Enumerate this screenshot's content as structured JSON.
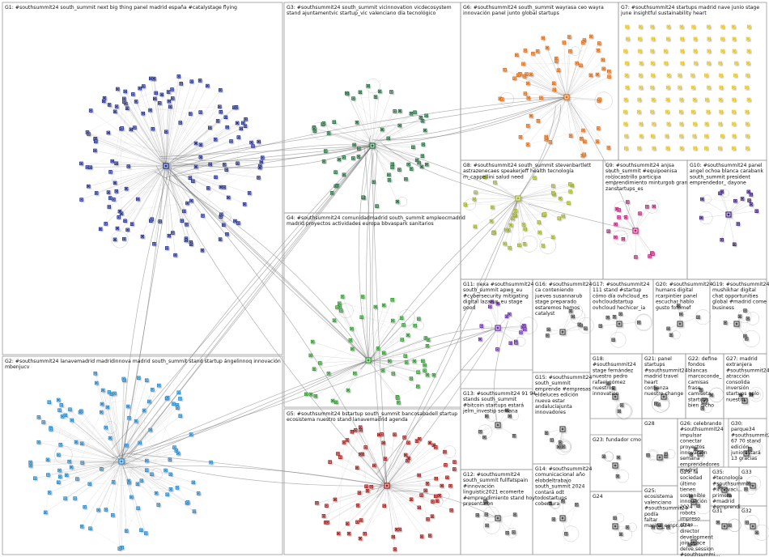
{
  "title": "",
  "colors": {
    "background": "#ffffff",
    "edge": "#8a8a8a",
    "group_border": "#9a9a9a",
    "G1": "#1a2a8a",
    "G2": "#1f86c8",
    "G3": "#1e6b3a",
    "G4": "#2a9a2a",
    "G5": "#a01818",
    "G6": "#d96a10",
    "G7": "#e6c21a",
    "G8": "#a0b020",
    "G9": "#c0187a",
    "G10": "#3a1a7a",
    "G11": "#6a2aa8",
    "small": "#4a4a4a"
  },
  "groups": [
    {
      "id": "G1",
      "label": "G1: #southsummit24 south_summit next big thing panel madrid españa #catalystage flying"
    },
    {
      "id": "G2",
      "label": "G2: #southsummit24 lanavemadrid madridinnova madrid south_summit stand startup ángelinnoq innovación mbenjucv"
    },
    {
      "id": "G3",
      "label": "G3: #southsummit24 south_summit vicinnovation vicdecosystem stand ajuntamentvic startup_vic valenciano día tecnológico"
    },
    {
      "id": "G4",
      "label": "G4: #southsummit24 comunidadmadrid south_summit empleocmadrid madrid proyectos actividades europa bbvaspark sanitarios"
    },
    {
      "id": "G5",
      "label": "G5: #southsummit24 bstartup south_summit bancosabadell startup ecosistema nuestro stand lanavemadrid agenda"
    },
    {
      "id": "G6",
      "label": "G6: #southsummit24 south_summit wayrasa ceo wayra innovación panel junto global startups"
    },
    {
      "id": "G7",
      "label": "G7: #southsummit24 startups madrid nave junio stage june insightful sustainability heart"
    },
    {
      "id": "G8",
      "label": "G8: #southsummit24 south_summit stevenbartlett astrazenecaes speakerjeff health tecnología m_cappellini salud need"
    },
    {
      "id": "G9",
      "label": "G9: #southsummit24 anjsa south_summit #equipoenisa rocíocastrillo participa emprendimiento minturgob gran zanstartups_es"
    },
    {
      "id": "G10",
      "label": "G10: #southsummit24 panel angel ochoa blanca carabank south_summit president emprendedor_ dayone"
    },
    {
      "id": "G11",
      "label": "G11: nexa #southsummit24 south_summit apwg_eu #cybersecurity mitigating digital lazarus_eu stage good"
    },
    {
      "id": "G12",
      "label": "G12: #southsummit24 south_summit fullfatspain #innovación linguistic2021 ecomerte #emprendimiento stand hoy presentaron"
    },
    {
      "id": "G13",
      "label": "G13: #southsummit24 91 94 stands south_summit #bitcoin startups estará jelrn_investip semana"
    },
    {
      "id": "G14",
      "label": "G14: #southsummit24 comunicacional año elobdeltrabajo south_summit 2024 contará odt todostartups cobertura"
    },
    {
      "id": "G15",
      "label": "G15: #southsummit24 south_summit emprende #empresas eldeluces edición nueva estar andalucíajunta innovadores"
    },
    {
      "id": "G16",
      "label": "G16: #southsummit24 ca conteniendo jueves susannarub stage preparado estaremos hemos catalyst"
    },
    {
      "id": "G17",
      "label": "G17: #southsummit24 111 stand #startup cómo día ovhcloud_es ovhcloudstartup ovhcloud hechicer_ia"
    },
    {
      "id": "G18",
      "label": "G18: #southsummit24 stage fernández nuestro pedro rafael gómez nuestros innovation"
    },
    {
      "id": "G19",
      "label": "G19: #southsummit24 mushikhar digital chat opportunities global #madrid come business"
    },
    {
      "id": "G20",
      "label": "G20: #southsummit24 humans digital rcarpintier panel escuchar hablo gusto fotomef"
    },
    {
      "id": "G21",
      "label": "G21: panel startups #southsummit24 madrid travel heart confianza nuestro change"
    },
    {
      "id": "G22",
      "label": "G22: define fondos blancas marcoconde_ camisas frase camiseta startups bien dicho"
    },
    {
      "id": "G23",
      "label": "G23: fundador cmo"
    },
    {
      "id": "G24",
      "label": "G24"
    },
    {
      "id": "G25",
      "label": "G25: ecosistema valenciano #southsummit24 podía faltar marina_empr..."
    },
    {
      "id": "G26",
      "label": "G26: celebrando #southsummit24 impulsar conectar proyectos innovación semana emprendedores madrid"
    },
    {
      "id": "G27",
      "label": "G27: madrid extranjera #southsummit24 atracción consolida inversión startups gplo nuestra"
    },
    {
      "id": "G28",
      "label": "G28"
    },
    {
      "id": "G29",
      "label": "G29: la sociedad último tienen sostenible innovación 2024 robots impreso atrae..."
    },
    {
      "id": "G30",
      "label": "G30: parque34 #southsummit24 67 70 stand edición junio estará 13 gracias"
    },
    {
      "id": "G31",
      "label": "G31"
    },
    {
      "id": "G32",
      "label": "G32"
    },
    {
      "id": "G33",
      "label": "G33"
    },
    {
      "id": "G34",
      "label": "G34: director development join space delve.session #southsummi..."
    },
    {
      "id": "G35",
      "label": "G35: #tecnología #southsummi... #innovaci... primera #madrid #emprendi..."
    }
  ]
}
